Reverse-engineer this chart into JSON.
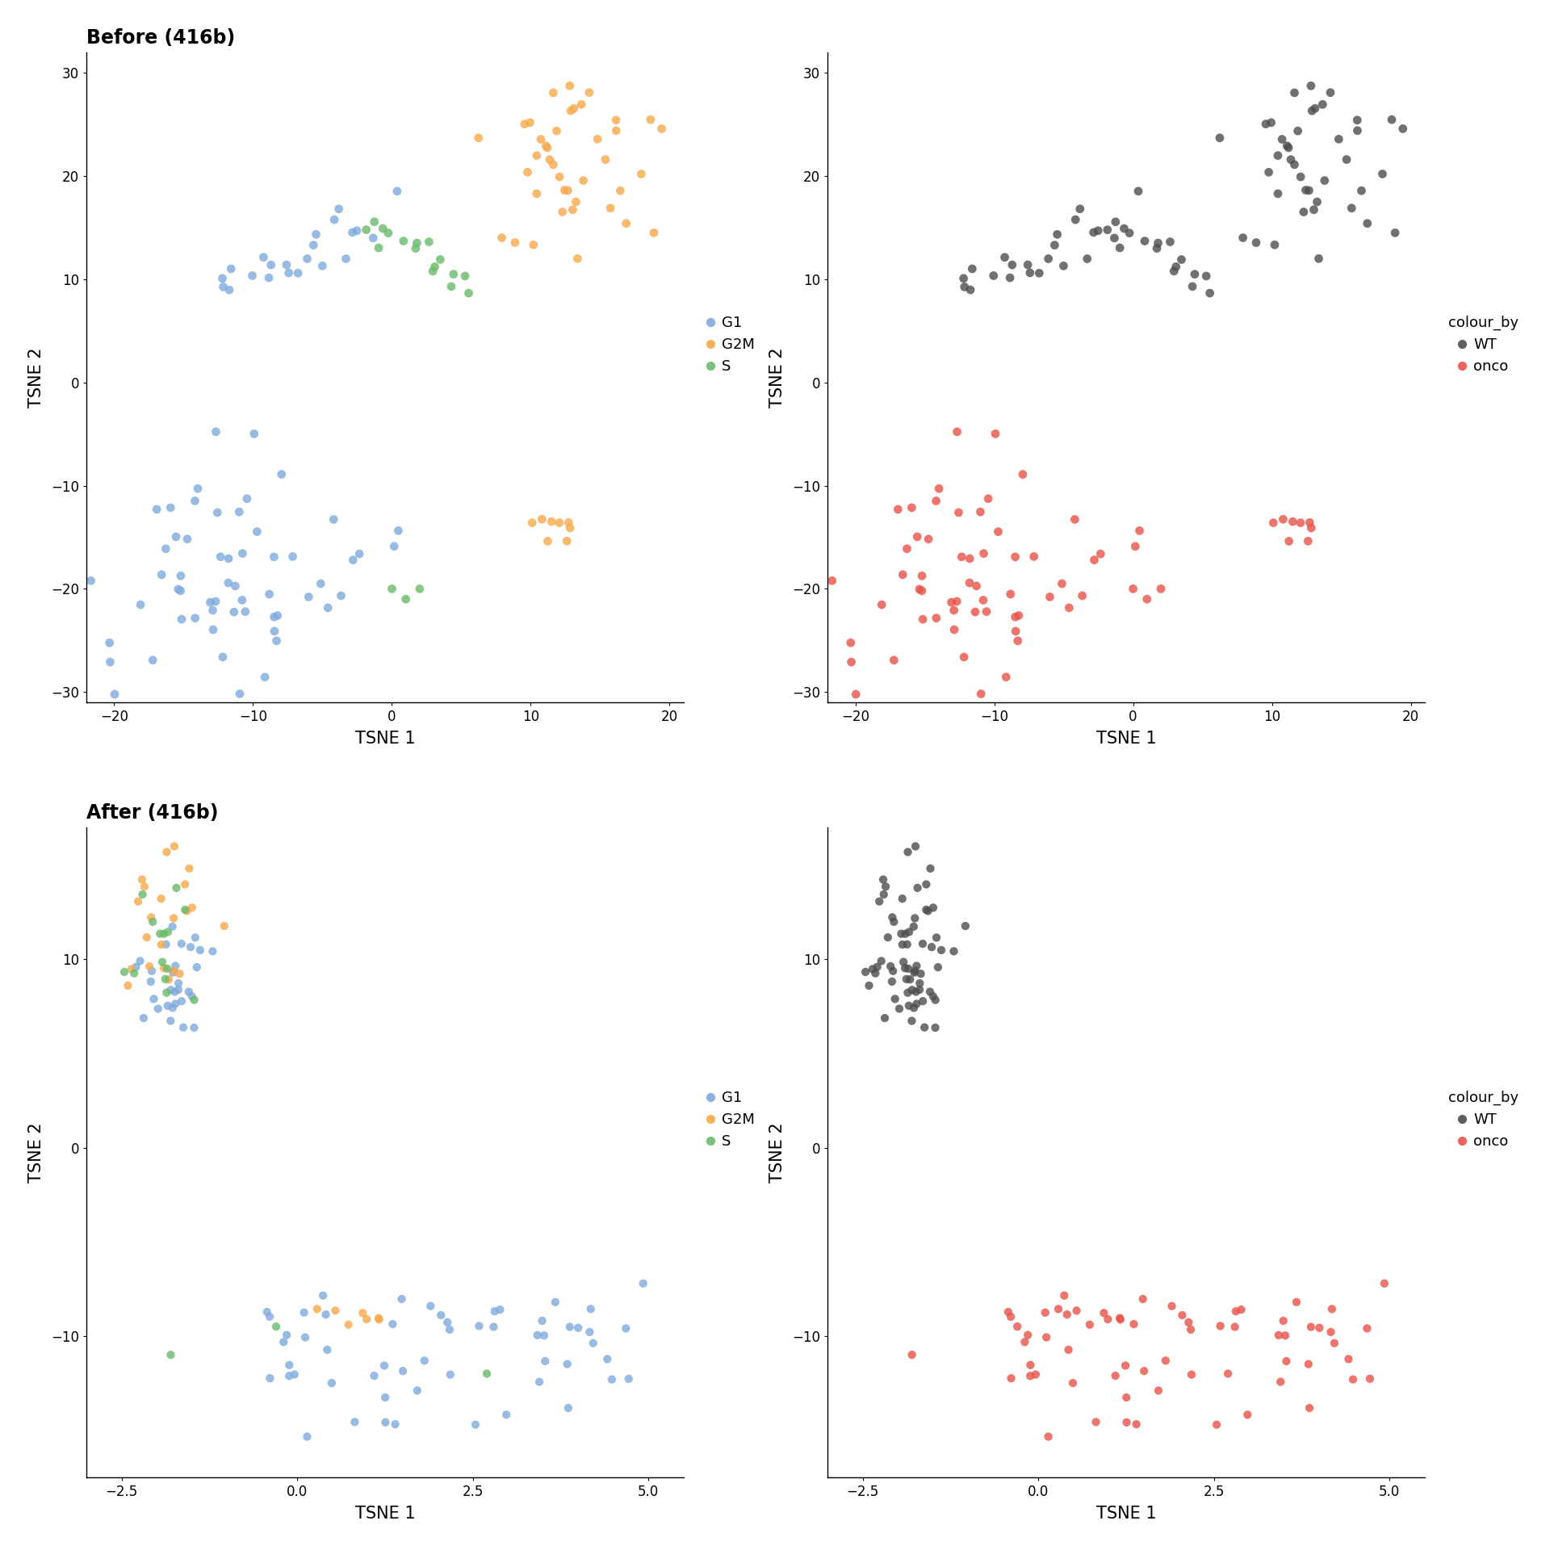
{
  "color_G1": "#7faadc",
  "color_G2M": "#f5a94b",
  "color_S": "#69b96a",
  "color_WT": "#4d4d4d",
  "color_onco": "#e8524a",
  "xlim_before": [
    -22,
    21
  ],
  "ylim_before": [
    -31,
    32
  ],
  "xlim_after": [
    -3.0,
    5.5
  ],
  "ylim_after": [
    -17.5,
    17
  ],
  "xticks_before": [
    -20,
    -10,
    0,
    10,
    20
  ],
  "yticks_before": [
    -30,
    -20,
    -10,
    0,
    10,
    20,
    30
  ],
  "xticks_after": [
    -2.5,
    0.0,
    2.5,
    5.0
  ],
  "yticks_after": [
    -10,
    0,
    10
  ],
  "ms_before": 60,
  "ms_after": 55,
  "alpha": 0.8
}
